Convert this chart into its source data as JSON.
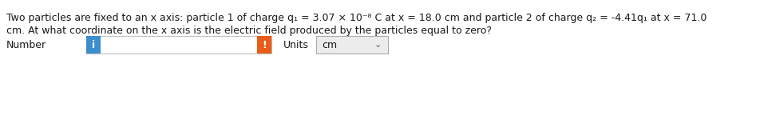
{
  "bg_color": "#ffffff",
  "text_line1": "Two particles are fixed to an x axis: particle 1 of charge q₁ = 3.07 × 10⁻⁸ C at x = 18.0 cm and particle 2 of charge q₂ = -4.41q₁ at x = 71.0",
  "text_line2": "cm. At what coordinate on the x axis is the electric field produced by the particles equal to zero?",
  "label_number": "Number",
  "label_units": "Units",
  "units_value": "cm",
  "text_color": "#1a1a1a",
  "text_fontsize": 9.0,
  "btn_color_blue": "#3a8fcc",
  "btn_color_orange": "#e85d1a",
  "btn_text_color": "#ffffff",
  "input_border_color": "#c0c0c0",
  "units_box_bg": "#ececec",
  "units_border_color": "#aaaaaa"
}
